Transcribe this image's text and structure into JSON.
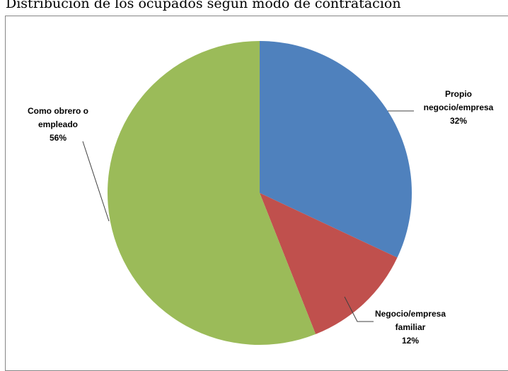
{
  "chart_data": {
    "type": "pie",
    "title": "Distribución de los ocupados según modo de contratación",
    "slices": [
      {
        "name": "Propio negocio/empresa",
        "label_lines": [
          "Propio",
          "negocio/empresa"
        ],
        "value": 32,
        "value_label": "32%",
        "color": "#4f81bd"
      },
      {
        "name": "Negocio/empresa familiar",
        "label_lines": [
          "Negocio/empresa",
          "familiar"
        ],
        "value": 12,
        "value_label": "12%",
        "color": "#c0504d"
      },
      {
        "name": "Como obrero o empleado",
        "label_lines": [
          "Como obrero o",
          "empleado"
        ],
        "value": 56,
        "value_label": "56%",
        "color": "#9bbb59"
      }
    ],
    "start_angle": "12 o'clock",
    "direction": "clockwise",
    "legend": "none",
    "data_labels": "outside with leader lines"
  }
}
